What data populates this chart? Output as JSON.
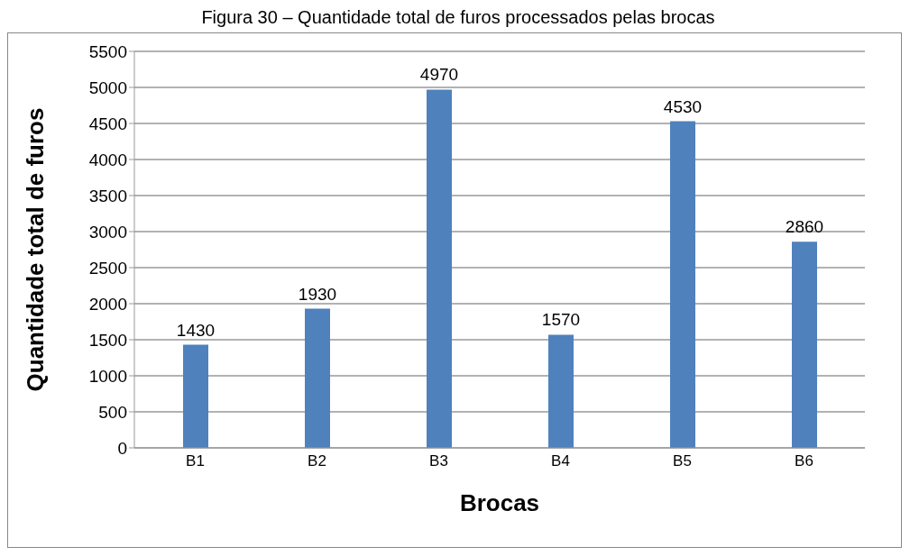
{
  "chart_data": {
    "type": "bar",
    "title": "Figura 30 – Quantidade total de furos processados pelas brocas",
    "xlabel": "Brocas",
    "ylabel": "Quantidade total de furos",
    "categories": [
      "B1",
      "B2",
      "B3",
      "B4",
      "B5",
      "B6"
    ],
    "values": [
      1430,
      1930,
      4970,
      1570,
      4530,
      2860
    ],
    "color": "#4f81bd",
    "ylim": [
      0,
      5500
    ],
    "yticks": [
      0,
      500,
      1000,
      1500,
      2000,
      2500,
      3000,
      3500,
      4000,
      4500,
      5000,
      5500
    ],
    "grid": "y",
    "data_labels": true
  }
}
